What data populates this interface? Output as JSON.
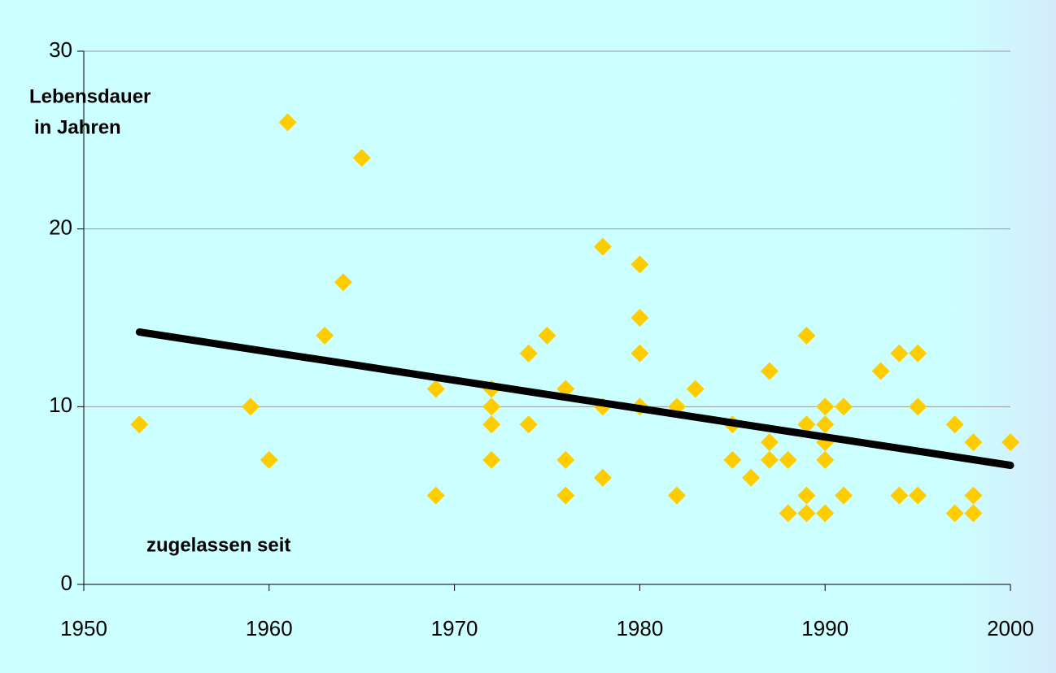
{
  "chart_data": {
    "type": "scatter",
    "annotations": [
      "Lebensdauer",
      "in Jahren",
      "zugelassen seit"
    ],
    "x": [
      1953,
      1959,
      1960,
      1961,
      1963,
      1964,
      1965,
      1969,
      1969,
      1972,
      1972,
      1972,
      1972,
      1974,
      1974,
      1975,
      1976,
      1976,
      1976,
      1978,
      1978,
      1978,
      1980,
      1980,
      1980,
      1980,
      1982,
      1982,
      1983,
      1985,
      1985,
      1986,
      1987,
      1987,
      1987,
      1988,
      1988,
      1989,
      1989,
      1989,
      1989,
      1990,
      1990,
      1990,
      1990,
      1990,
      1991,
      1991,
      1993,
      1994,
      1994,
      1995,
      1995,
      1995,
      1997,
      1997,
      1998,
      1998,
      1998,
      2000
    ],
    "values": [
      9,
      10,
      7,
      26,
      14,
      17,
      24,
      11,
      5,
      11,
      10,
      9,
      7,
      13,
      9,
      14,
      11,
      7,
      5,
      19,
      10,
      6,
      18,
      15,
      13,
      10,
      10,
      5,
      11,
      9,
      7,
      6,
      12,
      8,
      7,
      7,
      4,
      14,
      9,
      5,
      4,
      10,
      9,
      8,
      7,
      4,
      10,
      5,
      12,
      13,
      5,
      13,
      10,
      5,
      9,
      4,
      8,
      5,
      4,
      8
    ],
    "color": "#ffcc00",
    "trendline": {
      "x": [
        1953,
        2000
      ],
      "values": [
        14.2,
        6.7
      ],
      "color": "#000000"
    },
    "xlim": [
      1950,
      2000
    ],
    "xticks": [
      1950,
      1960,
      1970,
      1980,
      1990,
      2000
    ],
    "ylim": [
      0,
      30
    ],
    "yticks": [
      0,
      10,
      20,
      30
    ],
    "grid": true
  }
}
